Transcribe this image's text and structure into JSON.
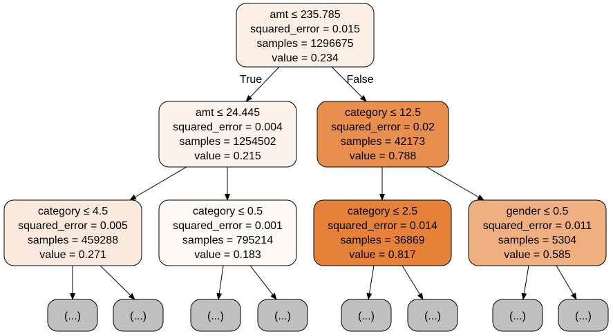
{
  "tree": {
    "edge_labels": {
      "true_label": "True",
      "false_label": "False"
    },
    "nodes": [
      {
        "id": "root",
        "fill": "#fcefe6",
        "lines": [
          "amt ≤ 235.785",
          "squared_error = 0.015",
          "samples = 1296675",
          "value = 0.234"
        ]
      },
      {
        "id": "n1",
        "fill": "#fdf3ec",
        "lines": [
          "amt ≤ 24.445",
          "squared_error = 0.004",
          "samples = 1254502",
          "value = 0.215"
        ]
      },
      {
        "id": "n2",
        "fill": "#e88e4e",
        "lines": [
          "category ≤ 12.5",
          "squared_error = 0.02",
          "samples = 42173",
          "value = 0.788"
        ]
      },
      {
        "id": "n3",
        "fill": "#fbe9dd",
        "lines": [
          "category ≤ 4.5",
          "squared_error = 0.005",
          "samples = 459288",
          "value = 0.271"
        ]
      },
      {
        "id": "n4",
        "fill": "#fef9f5",
        "lines": [
          "category ≤ 0.5",
          "squared_error = 0.001",
          "samples = 795214",
          "value = 0.183"
        ]
      },
      {
        "id": "n5",
        "fill": "#e58139",
        "lines": [
          "category ≤ 2.5",
          "squared_error = 0.014",
          "samples = 36869",
          "value = 0.817"
        ]
      },
      {
        "id": "n6",
        "fill": "#efaf81",
        "lines": [
          "gender ≤ 0.5",
          "squared_error = 0.011",
          "samples = 5304",
          "value = 0.585"
        ]
      }
    ],
    "collapsed_fill": "#c0c0c0",
    "collapsed_label": "(...)"
  }
}
